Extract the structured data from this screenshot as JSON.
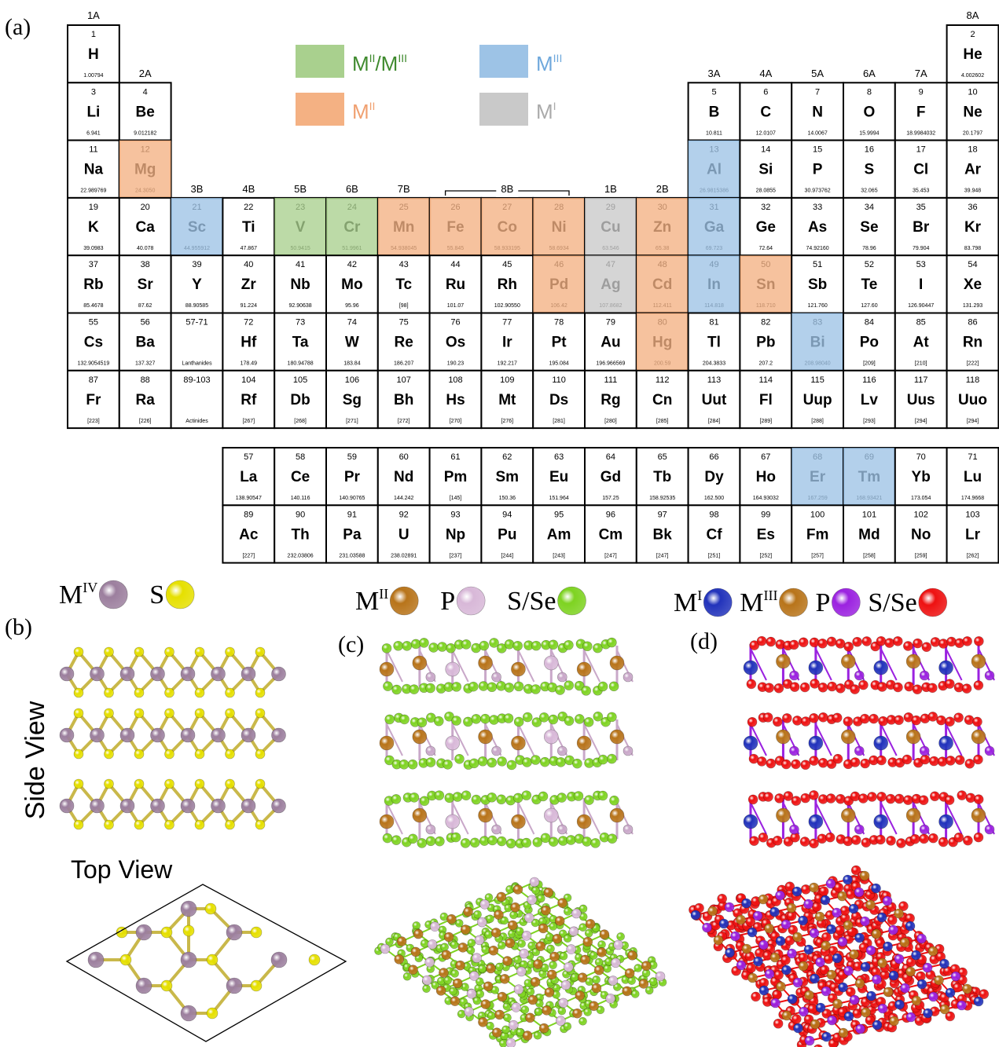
{
  "panel_labels": [
    "(a)",
    "(b)",
    "(c)",
    "(d)"
  ],
  "periodic_table": {
    "group_labels": [
      "1A",
      "2A",
      "3B",
      "4B",
      "5B",
      "6B",
      "7B",
      "8B",
      "1B",
      "2B",
      "3A",
      "4A",
      "5A",
      "6A",
      "7A",
      "8A"
    ],
    "legend": [
      {
        "label": [
          {
            "text": "M",
            "sup": "II"
          },
          {
            "text": "/M",
            "sup": "III"
          }
        ],
        "color": "#a9d08e",
        "text_color": "#3f8a2e"
      },
      {
        "label": [
          {
            "text": "M",
            "sup": "III"
          }
        ],
        "color": "#9dc3e6",
        "text_color": "#6fa8dc"
      },
      {
        "label": [
          {
            "text": "M",
            "sup": "II"
          }
        ],
        "color": "#f4b183",
        "text_color": "#f0a070"
      },
      {
        "label": [
          {
            "text": "M",
            "sup": "I"
          }
        ],
        "color": "#c9c9c9",
        "text_color": "#aaaaaa"
      }
    ],
    "periods": [
      [
        {
          "n": 1,
          "s": "H",
          "m": "1.00794"
        },
        {
          "n": 2,
          "s": "He",
          "m": "4.002602"
        }
      ],
      [
        {
          "n": 3,
          "s": "Li",
          "m": "6.941"
        },
        {
          "n": 4,
          "s": "Be",
          "m": "9.012182"
        },
        {
          "n": 5,
          "s": "B",
          "m": "10.811"
        },
        {
          "n": 6,
          "s": "C",
          "m": "12.0107"
        },
        {
          "n": 7,
          "s": "N",
          "m": "14.0067"
        },
        {
          "n": 8,
          "s": "O",
          "m": "15.9994"
        },
        {
          "n": 9,
          "s": "F",
          "m": "18.9984032"
        },
        {
          "n": 10,
          "s": "Ne",
          "m": "20.1797"
        }
      ],
      [
        {
          "n": 11,
          "s": "Na",
          "m": "22.989769"
        },
        {
          "n": 12,
          "s": "Mg",
          "m": "24.3050",
          "color": "#f4b183"
        },
        {
          "n": 13,
          "s": "Al",
          "m": "26.9815386",
          "color": "#9dc3e6"
        },
        {
          "n": 14,
          "s": "Si",
          "m": "28.0855"
        },
        {
          "n": 15,
          "s": "P",
          "m": "30.973762"
        },
        {
          "n": 16,
          "s": "S",
          "m": "32.065"
        },
        {
          "n": 17,
          "s": "Cl",
          "m": "35.453"
        },
        {
          "n": 18,
          "s": "Ar",
          "m": "39.948"
        }
      ],
      [
        {
          "n": 19,
          "s": "K",
          "m": "39.0983"
        },
        {
          "n": 20,
          "s": "Ca",
          "m": "40.078"
        },
        {
          "n": 21,
          "s": "Sc",
          "m": "44.955912",
          "color": "#9dc3e6"
        },
        {
          "n": 22,
          "s": "Ti",
          "m": "47.867"
        },
        {
          "n": 23,
          "s": "V",
          "m": "50.9415",
          "color": "#a9d08e"
        },
        {
          "n": 24,
          "s": "Cr",
          "m": "51.9961",
          "color": "#a9d08e"
        },
        {
          "n": 25,
          "s": "Mn",
          "m": "54.938045",
          "color": "#f4b183"
        },
        {
          "n": 26,
          "s": "Fe",
          "m": "55.845",
          "color": "#f4b183"
        },
        {
          "n": 27,
          "s": "Co",
          "m": "58.933195",
          "color": "#f4b183"
        },
        {
          "n": 28,
          "s": "Ni",
          "m": "58.6934",
          "color": "#f4b183"
        },
        {
          "n": 29,
          "s": "Cu",
          "m": "63.546",
          "color": "#c9c9c9"
        },
        {
          "n": 30,
          "s": "Zn",
          "m": "65.38",
          "color": "#f4b183"
        },
        {
          "n": 31,
          "s": "Ga",
          "m": "69.723",
          "color": "#9dc3e6"
        },
        {
          "n": 32,
          "s": "Ge",
          "m": "72.64"
        },
        {
          "n": 33,
          "s": "As",
          "m": "74.92160"
        },
        {
          "n": 34,
          "s": "Se",
          "m": "78.96"
        },
        {
          "n": 35,
          "s": "Br",
          "m": "79.904"
        },
        {
          "n": 36,
          "s": "Kr",
          "m": "83.798"
        }
      ],
      [
        {
          "n": 37,
          "s": "Rb",
          "m": "85.4678"
        },
        {
          "n": 38,
          "s": "Sr",
          "m": "87.62"
        },
        {
          "n": 39,
          "s": "Y",
          "m": "88.90585"
        },
        {
          "n": 40,
          "s": "Zr",
          "m": "91.224"
        },
        {
          "n": 41,
          "s": "Nb",
          "m": "92.90638"
        },
        {
          "n": 42,
          "s": "Mo",
          "m": "95.96"
        },
        {
          "n": 43,
          "s": "Tc",
          "m": "[98]"
        },
        {
          "n": 44,
          "s": "Ru",
          "m": "101.07"
        },
        {
          "n": 45,
          "s": "Rh",
          "m": "102.90550"
        },
        {
          "n": 46,
          "s": "Pd",
          "m": "106.42",
          "color": "#f4b183"
        },
        {
          "n": 47,
          "s": "Ag",
          "m": "107.8682",
          "color": "#c9c9c9"
        },
        {
          "n": 48,
          "s": "Cd",
          "m": "112.411",
          "color": "#f4b183"
        },
        {
          "n": 49,
          "s": "In",
          "m": "114.818",
          "color": "#9dc3e6"
        },
        {
          "n": 50,
          "s": "Sn",
          "m": "118.710",
          "color": "#f4b183"
        },
        {
          "n": 51,
          "s": "Sb",
          "m": "121.760"
        },
        {
          "n": 52,
          "s": "Te",
          "m": "127.60"
        },
        {
          "n": 53,
          "s": "I",
          "m": "126.90447"
        },
        {
          "n": 54,
          "s": "Xe",
          "m": "131.293"
        }
      ],
      [
        {
          "n": 55,
          "s": "Cs",
          "m": "132.9054519"
        },
        {
          "n": 56,
          "s": "Ba",
          "m": "137.327"
        },
        {
          "n": "57-71",
          "m": "Lanthanides"
        },
        {
          "n": 72,
          "s": "Hf",
          "m": "178.49"
        },
        {
          "n": 73,
          "s": "Ta",
          "m": "180.94788"
        },
        {
          "n": 74,
          "s": "W",
          "m": "183.84"
        },
        {
          "n": 75,
          "s": "Re",
          "m": "186.207"
        },
        {
          "n": 76,
          "s": "Os",
          "m": "190.23"
        },
        {
          "n": 77,
          "s": "Ir",
          "m": "192.217"
        },
        {
          "n": 78,
          "s": "Pt",
          "m": "195.084"
        },
        {
          "n": 79,
          "s": "Au",
          "m": "196.966569"
        },
        {
          "n": 80,
          "s": "Hg",
          "m": "200.59",
          "color": "#f4b183"
        },
        {
          "n": 81,
          "s": "Tl",
          "m": "204.3833"
        },
        {
          "n": 82,
          "s": "Pb",
          "m": "207.2"
        },
        {
          "n": 83,
          "s": "Bi",
          "m": "208.98040",
          "color": "#9dc3e6"
        },
        {
          "n": 84,
          "s": "Po",
          "m": "[209]"
        },
        {
          "n": 85,
          "s": "At",
          "m": "[210]"
        },
        {
          "n": 86,
          "s": "Rn",
          "m": "[222]"
        }
      ],
      [
        {
          "n": 87,
          "s": "Fr",
          "m": "[223]"
        },
        {
          "n": 88,
          "s": "Ra",
          "m": "[226]"
        },
        {
          "n": "89-103",
          "m": "Actinides"
        },
        {
          "n": 104,
          "s": "Rf",
          "m": "[267]"
        },
        {
          "n": 105,
          "s": "Db",
          "m": "[268]"
        },
        {
          "n": 106,
          "s": "Sg",
          "m": "[271]"
        },
        {
          "n": 107,
          "s": "Bh",
          "m": "[272]"
        },
        {
          "n": 108,
          "s": "Hs",
          "m": "[270]"
        },
        {
          "n": 109,
          "s": "Mt",
          "m": "[276]"
        },
        {
          "n": 110,
          "s": "Ds",
          "m": "[281]"
        },
        {
          "n": 111,
          "s": "Rg",
          "m": "[280]"
        },
        {
          "n": 112,
          "s": "Cn",
          "m": "[285]"
        },
        {
          "n": 113,
          "s": "Uut",
          "m": "[284]"
        },
        {
          "n": 114,
          "s": "Fl",
          "m": "[289]"
        },
        {
          "n": 115,
          "s": "Uup",
          "m": "[288]"
        },
        {
          "n": 116,
          "s": "Lv",
          "m": "[293]"
        },
        {
          "n": 117,
          "s": "Uus",
          "m": "[294]"
        },
        {
          "n": 118,
          "s": "Uuo",
          "m": "[294]"
        }
      ]
    ],
    "f_block": [
      [
        {
          "n": 57,
          "s": "La",
          "m": "138.90547"
        },
        {
          "n": 58,
          "s": "Ce",
          "m": "140.116"
        },
        {
          "n": 59,
          "s": "Pr",
          "m": "140.90765"
        },
        {
          "n": 60,
          "s": "Nd",
          "m": "144.242"
        },
        {
          "n": 61,
          "s": "Pm",
          "m": "[145]"
        },
        {
          "n": 62,
          "s": "Sm",
          "m": "150.36"
        },
        {
          "n": 63,
          "s": "Eu",
          "m": "151.964"
        },
        {
          "n": 64,
          "s": "Gd",
          "m": "157.25"
        },
        {
          "n": 65,
          "s": "Tb",
          "m": "158.92535"
        },
        {
          "n": 66,
          "s": "Dy",
          "m": "162.500"
        },
        {
          "n": 67,
          "s": "Ho",
          "m": "164.93032"
        },
        {
          "n": 68,
          "s": "Er",
          "m": "167.259",
          "color": "#9dc3e6"
        },
        {
          "n": 69,
          "s": "Tm",
          "m": "168.93421",
          "color": "#9dc3e6"
        },
        {
          "n": 70,
          "s": "Yb",
          "m": "173.054"
        },
        {
          "n": 71,
          "s": "Lu",
          "m": "174.9668"
        }
      ],
      [
        {
          "n": 89,
          "s": "Ac",
          "m": "[227]"
        },
        {
          "n": 90,
          "s": "Th",
          "m": "232.03806"
        },
        {
          "n": 91,
          "s": "Pa",
          "m": "231.03588"
        },
        {
          "n": 92,
          "s": "U",
          "m": "238.02891"
        },
        {
          "n": 93,
          "s": "Np",
          "m": "[237]"
        },
        {
          "n": 94,
          "s": "Pu",
          "m": "[244]"
        },
        {
          "n": 95,
          "s": "Am",
          "m": "[243]"
        },
        {
          "n": 96,
          "s": "Cm",
          "m": "[247]"
        },
        {
          "n": 97,
          "s": "Bk",
          "m": "[247]"
        },
        {
          "n": 98,
          "s": "Cf",
          "m": "[251]"
        },
        {
          "n": 99,
          "s": "Es",
          "m": "[252]"
        },
        {
          "n": 100,
          "s": "Fm",
          "m": "[257]"
        },
        {
          "n": 101,
          "s": "Md",
          "m": "[258]"
        },
        {
          "n": 102,
          "s": "No",
          "m": "[259]"
        },
        {
          "n": 103,
          "s": "Lr",
          "m": "[262]"
        }
      ]
    ]
  },
  "structures": {
    "side_view": "Side View",
    "top_view": "Top View",
    "legends": [
      [
        {
          "text": "M",
          "sup": "IV",
          "color": "#9c7f9e"
        },
        {
          "text": "S",
          "color": "#e6e000"
        }
      ],
      [
        {
          "text": "M",
          "sup": "II",
          "color": "#b8741a"
        },
        {
          "text": "P",
          "color": "#d8b8d8"
        },
        {
          "text": "S/Se",
          "color": "#7ed321"
        }
      ],
      [
        {
          "text": "M",
          "sup": "I",
          "color": "#2233bb"
        },
        {
          "text": "M",
          "sup": "III",
          "color": "#b8741a"
        },
        {
          "text": "P",
          "color": "#9b22e0"
        },
        {
          "text": "S/Se",
          "color": "#ee1111"
        }
      ]
    ]
  }
}
